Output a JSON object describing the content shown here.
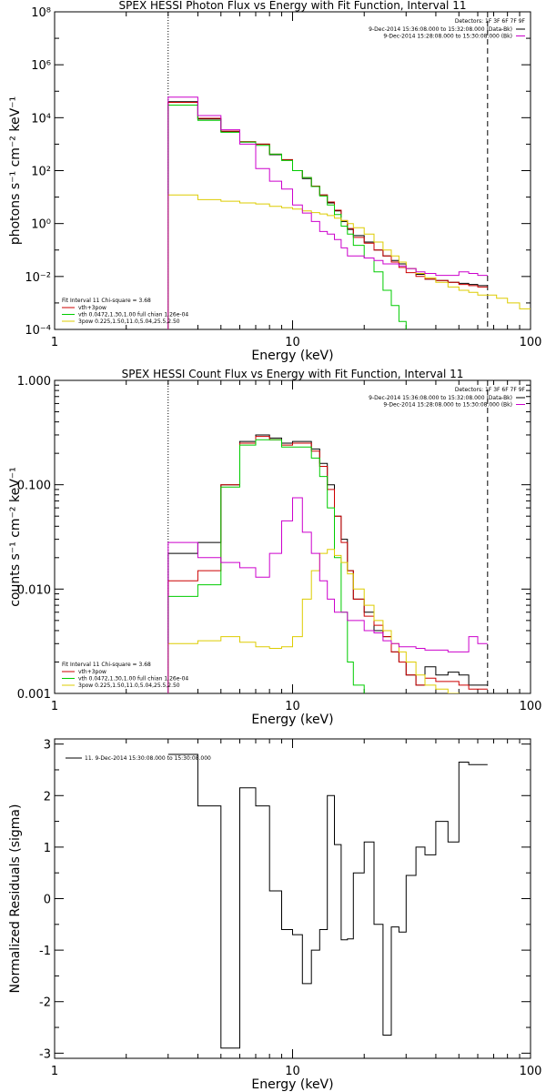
{
  "chart_data": [
    {
      "type": "line",
      "step": true,
      "title": "SPEX HESSI Photon Flux vs Energy with Fit Function, Interval 11",
      "xlabel": "Energy (keV)",
      "ylabel": "photons s⁻¹ cm⁻² keV⁻¹",
      "xscale": "log",
      "yscale": "log",
      "xlim": [
        1,
        100
      ],
      "ylim": [
        0.0001,
        100000000
      ],
      "x_ticks": [
        "1",
        "10",
        "100"
      ],
      "y_ticks": [
        "10⁻⁴",
        "10⁻²",
        "10⁰",
        "10²",
        "10⁴",
        "10⁶",
        "10⁸"
      ],
      "vlines": [
        {
          "x": 3,
          "style": "dotted"
        },
        {
          "x": 66,
          "style": "dashed"
        }
      ],
      "legend_top": {
        "text": "Detectors: 1F 3F 6F 7F 9F",
        "entries": [
          {
            "label": "9-Dec-2014 15:36:08.000 to 15:32:08.000 (Data-Bk)",
            "color": "#000000"
          },
          {
            "label": "9-Dec-2014 15:28:08.000 to 15:30:08.000 (Bk)",
            "color": "#cc00cc"
          }
        ]
      },
      "legend_bottom": {
        "text": "Fit Interval 11   Chi-square = 3.68",
        "entries": [
          {
            "label": "vth+3pow",
            "color": "#cc0000"
          },
          {
            "label": "vth 0.0472,1.30,1.00  full chian 1.26e-04",
            "color": "#00cc00"
          },
          {
            "label": "3pow 0.225,1.50,11.0,5.04,25.5,2.50",
            "color": "#ddcc00"
          }
        ]
      },
      "edges": [
        3,
        4,
        5,
        6,
        7,
        8,
        9,
        10,
        11,
        12,
        13,
        14,
        15,
        16,
        17,
        18,
        20,
        22,
        24,
        26,
        28,
        30,
        33,
        36,
        40,
        45,
        50,
        55,
        60,
        66
      ],
      "series": [
        {
          "color": "#000000",
          "values": [
            40000,
            9000,
            3000,
            1200,
            1000,
            400,
            250,
            100,
            50,
            25,
            12,
            6,
            3,
            1.2,
            0.6,
            0.35,
            0.2,
            0.1,
            0.06,
            0.04,
            0.03,
            0.02,
            0.012,
            0.008,
            0.007,
            0.006,
            0.0055,
            0.005,
            0.0045
          ]
        },
        {
          "color": "#cc0000",
          "values": [
            38000,
            9500,
            3100,
            1250,
            1000,
            420,
            260,
            100,
            55,
            26,
            12,
            6.5,
            3.2,
            1.3,
            0.65,
            0.3,
            0.18,
            0.1,
            0.06,
            0.035,
            0.022,
            0.014,
            0.01,
            0.008,
            0.007,
            0.006,
            0.005,
            0.0045,
            0.004
          ]
        },
        {
          "color": "#00cc00",
          "values": [
            30000,
            8000,
            2800,
            1200,
            900,
            420,
            240,
            100,
            55,
            25,
            11,
            5,
            2.2,
            0.8,
            0.4,
            0.15,
            0.05,
            0.015,
            0.003,
            0.0008,
            0.0002,
            5e-05
          ]
        },
        {
          "color": "#ddcc00",
          "values": [
            12,
            8,
            7,
            6,
            5.5,
            4.5,
            4,
            3.5,
            3,
            2.6,
            2.3,
            2,
            1.6,
            1.3,
            1,
            0.7,
            0.4,
            0.2,
            0.1,
            0.06,
            0.035,
            0.02,
            0.013,
            0.009,
            0.006,
            0.004,
            0.003,
            0.0025,
            0.002
          ],
          "extend": {
            "edges": [
              66,
              72,
              80,
              90,
              100
            ],
            "values": [
              0.002,
              0.0015,
              0.001,
              0.0006
            ]
          }
        },
        {
          "color": "#cc00cc",
          "values": [
            60000,
            12000,
            3500,
            1000,
            120,
            40,
            20,
            5,
            2.5,
            1.2,
            0.5,
            0.4,
            0.25,
            0.12,
            0.06,
            0.06,
            0.05,
            0.04,
            0.03,
            0.03,
            0.025,
            0.02,
            0.015,
            0.013,
            0.011,
            0.011,
            0.015,
            0.013,
            0.011
          ]
        }
      ]
    },
    {
      "type": "line",
      "step": true,
      "title": "SPEX HESSI Count Flux vs Energy with Fit Function, Interval 11",
      "xlabel": "Energy (keV)",
      "ylabel": "counts s⁻¹ cm⁻² keV⁻¹",
      "xscale": "log",
      "yscale": "log",
      "xlim": [
        1,
        100
      ],
      "ylim": [
        0.001,
        1
      ],
      "x_ticks": [
        "1",
        "10",
        "100"
      ],
      "y_ticks": [
        "0.001",
        "0.010",
        "0.100",
        "1.000"
      ],
      "vlines": [
        {
          "x": 3,
          "style": "dotted"
        },
        {
          "x": 66,
          "style": "dashed"
        }
      ],
      "legend_top": {
        "text": "Detectors: 1F 3F 6F 7F 9F",
        "entries": [
          {
            "label": "9-Dec-2014 15:36:08.000 to 15:32:08.000 (Data-Bk)",
            "color": "#000000"
          },
          {
            "label": "9-Dec-2014 15:28:08.000 to 15:30:08.000 (Bk)",
            "color": "#cc00cc"
          }
        ]
      },
      "legend_bottom": {
        "text": "Fit Interval 11   Chi-square = 3.68",
        "entries": [
          {
            "label": "vth+3pow",
            "color": "#cc0000"
          },
          {
            "label": "vth 0.0472,1.30,1.00  full chian 1.26e-04",
            "color": "#00cc00"
          },
          {
            "label": "3pow 0.225,1.50,11.0,5.04,25.5,2.50",
            "color": "#ddcc00"
          }
        ]
      },
      "edges": [
        3,
        4,
        5,
        6,
        7,
        8,
        9,
        10,
        11,
        12,
        13,
        14,
        15,
        16,
        17,
        18,
        20,
        22,
        24,
        26,
        28,
        30,
        33,
        36,
        40,
        45,
        50,
        55,
        60,
        66
      ],
      "series": [
        {
          "color": "#000000",
          "values": [
            0.022,
            0.028,
            0.1,
            0.26,
            0.3,
            0.28,
            0.25,
            0.26,
            0.26,
            0.22,
            0.16,
            0.1,
            0.05,
            0.03,
            0.015,
            0.008,
            0.006,
            0.004,
            0.0035,
            0.0025,
            0.002,
            0.0015,
            0.0012,
            0.0018,
            0.0015,
            0.0016,
            0.0015,
            0.0012,
            0.0012
          ]
        },
        {
          "color": "#cc0000",
          "values": [
            0.012,
            0.015,
            0.1,
            0.25,
            0.29,
            0.27,
            0.24,
            0.25,
            0.25,
            0.21,
            0.15,
            0.09,
            0.05,
            0.028,
            0.015,
            0.008,
            0.0055,
            0.0045,
            0.0035,
            0.0025,
            0.002,
            0.0015,
            0.0012,
            0.0014,
            0.0013,
            0.0013,
            0.0012,
            0.0011,
            0.0011
          ]
        },
        {
          "color": "#00cc00",
          "values": [
            0.0085,
            0.011,
            0.095,
            0.24,
            0.27,
            0.27,
            0.23,
            0.23,
            0.23,
            0.18,
            0.12,
            0.06,
            0.02,
            0.006,
            0.002,
            0.0012,
            0.0009
          ]
        },
        {
          "color": "#ddcc00",
          "values": [
            0.003,
            0.0032,
            0.0035,
            0.0031,
            0.0028,
            0.0027,
            0.0028,
            0.0035,
            0.008,
            0.015,
            0.022,
            0.024,
            0.021,
            0.018,
            0.014,
            0.01,
            0.007,
            0.005,
            0.004,
            0.003,
            0.0025,
            0.002,
            0.0015,
            0.0012,
            0.0011,
            0.001,
            0.0009
          ]
        },
        {
          "color": "#cc00cc",
          "values": [
            0.028,
            0.02,
            0.018,
            0.016,
            0.013,
            0.022,
            0.045,
            0.075,
            0.035,
            0.022,
            0.012,
            0.008,
            0.006,
            0.006,
            0.005,
            0.005,
            0.004,
            0.0038,
            0.0032,
            0.003,
            0.0028,
            0.0028,
            0.0027,
            0.0026,
            0.0026,
            0.0025,
            0.0025,
            0.0035,
            0.003
          ]
        }
      ]
    },
    {
      "type": "line",
      "step": true,
      "xlabel": "Energy (keV)",
      "ylabel": "Normalized Residuals (sigma)",
      "xscale": "log",
      "xlim": [
        1,
        100
      ],
      "ylim": [
        -3.1,
        3.1
      ],
      "x_ticks": [
        "1",
        "10",
        "100"
      ],
      "y_ticks": [
        "-3",
        "-2",
        "-1",
        "0",
        "1",
        "2",
        "3"
      ],
      "legend": {
        "label": "11.  9-Dec-2014 15:30:08.000 to 15:30:08.000",
        "color": "#000000"
      },
      "edges": [
        3,
        4,
        5,
        6,
        7,
        8,
        9,
        10,
        11,
        12,
        13,
        14,
        15,
        16,
        17,
        18,
        20,
        22,
        24,
        26,
        28,
        30,
        33,
        36,
        40,
        45,
        50,
        55,
        60,
        66
      ],
      "series": [
        {
          "color": "#000000",
          "values": [
            2.8,
            1.8,
            -2.9,
            2.15,
            1.8,
            0.15,
            -0.6,
            -0.7,
            -1.65,
            -1.0,
            -0.6,
            2.0,
            1.05,
            -0.8,
            -0.78,
            0.5,
            1.1,
            -0.5,
            -2.65,
            -0.55,
            -0.65,
            0.45,
            1.0,
            0.85,
            1.5,
            1.1,
            2.65,
            2.6,
            2.6
          ]
        }
      ]
    }
  ]
}
